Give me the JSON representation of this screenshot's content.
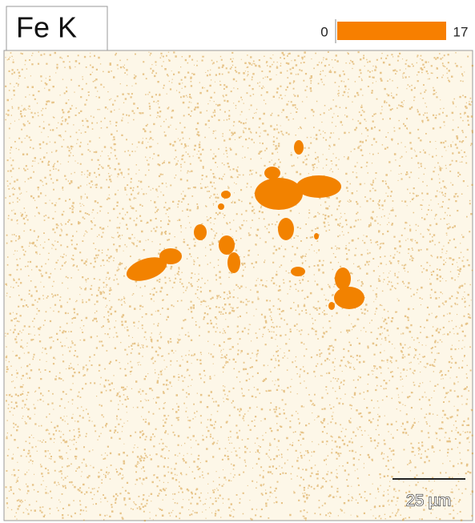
{
  "title": "Fe K",
  "scale": {
    "min": "0",
    "max": "17"
  },
  "scale_bar": "25 µm"
}
